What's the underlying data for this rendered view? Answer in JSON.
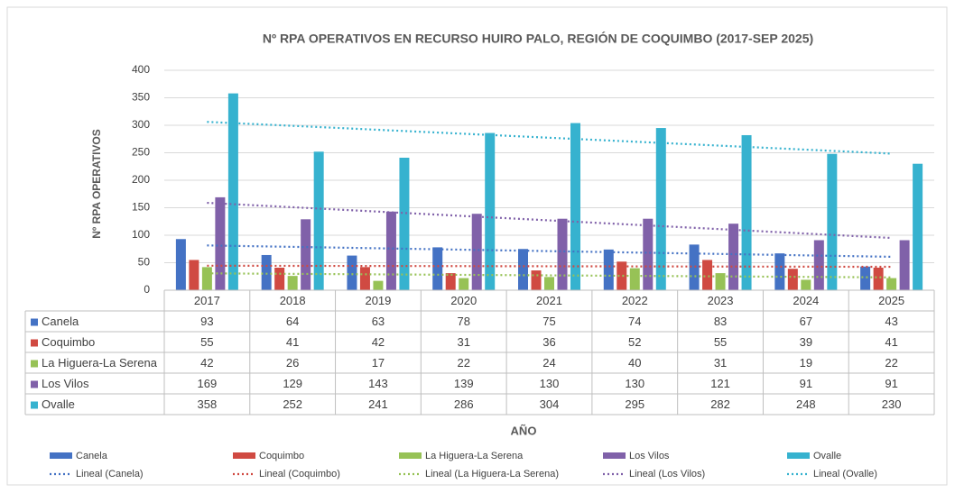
{
  "chart_data": {
    "type": "bar",
    "title": "Nº RPA OPERATIVOS EN RECURSO HUIRO PALO, REGIÓN DE COQUIMBO (2017-SEP 2025)",
    "y_label": "Nº RPA OPERATIVOS",
    "x_label": "AÑO",
    "categories": [
      "2017",
      "2018",
      "2019",
      "2020",
      "2021",
      "2022",
      "2023",
      "2024",
      "2025"
    ],
    "ylim": [
      0,
      400
    ],
    "yticks": [
      0,
      50,
      100,
      150,
      200,
      250,
      300,
      350,
      400
    ],
    "grid": true,
    "legend": "bottom",
    "series": [
      {
        "name": "Canela",
        "color": "#4472c4",
        "values": [
          93,
          64,
          63,
          78,
          75,
          74,
          83,
          67,
          43
        ],
        "trendline": {
          "type": "linear",
          "label": "Lineal (Canela)"
        }
      },
      {
        "name": "Coquimbo",
        "color": "#d04a42",
        "values": [
          55,
          41,
          42,
          31,
          36,
          52,
          55,
          39,
          41
        ],
        "trendline": {
          "type": "linear",
          "label": "Lineal (Coquimbo)"
        }
      },
      {
        "name": "La Higuera-La Serena",
        "color": "#97c256",
        "values": [
          42,
          26,
          17,
          22,
          24,
          40,
          31,
          19,
          22
        ],
        "trendline": {
          "type": "linear",
          "label": "Lineal (La Higuera-La Serena)"
        }
      },
      {
        "name": "Los Vilos",
        "color": "#8061a9",
        "values": [
          169,
          129,
          143,
          139,
          130,
          130,
          121,
          91,
          91
        ],
        "trendline": {
          "type": "linear",
          "label": "Lineal (Los Vilos)"
        }
      },
      {
        "name": "Ovalle",
        "color": "#36b2cf",
        "values": [
          358,
          252,
          241,
          286,
          304,
          295,
          282,
          248,
          230
        ],
        "trendline": {
          "type": "linear",
          "label": "Lineal (Ovalle)"
        }
      }
    ]
  }
}
